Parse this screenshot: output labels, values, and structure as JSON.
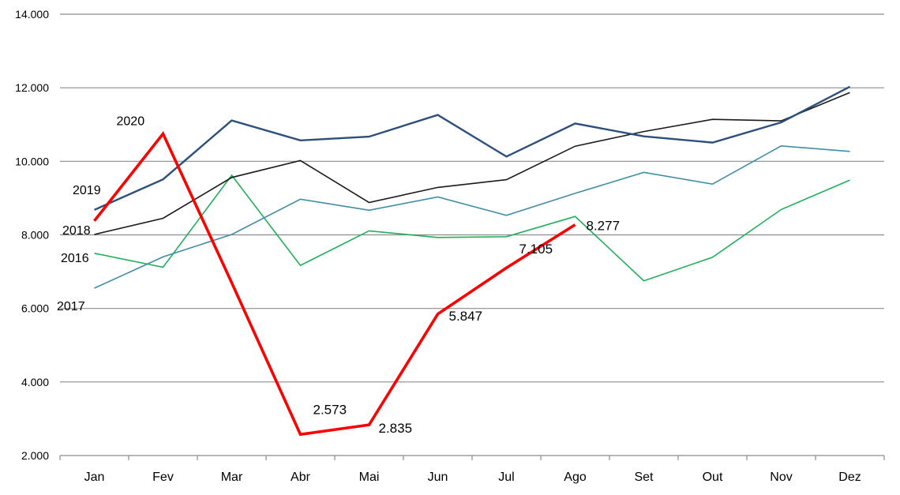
{
  "chart_data": {
    "type": "line",
    "title": "",
    "xlabel": "",
    "ylabel": "",
    "categories": [
      "Jan",
      "Fev",
      "Mar",
      "Abr",
      "Mai",
      "Jun",
      "Jul",
      "Ago",
      "Set",
      "Out",
      "Nov",
      "Dez"
    ],
    "ylim": [
      2000,
      14000
    ],
    "yticks": [
      2000,
      4000,
      6000,
      8000,
      10000,
      12000,
      14000
    ],
    "ytick_labels": [
      "2.000",
      "4.000",
      "6.000",
      "8.000",
      "10.000",
      "12.000",
      "14.000"
    ],
    "grid": true,
    "legend": "none",
    "series": [
      {
        "name": "2016",
        "color": "#1fb05a",
        "values": [
          7500,
          7120,
          9620,
          7170,
          8110,
          7930,
          7950,
          8500,
          6750,
          7390,
          8690,
          9490
        ]
      },
      {
        "name": "2017",
        "color": "#3f8ea6",
        "values": [
          6550,
          7400,
          8010,
          8970,
          8670,
          9030,
          8530,
          9130,
          9700,
          9380,
          10420,
          10270
        ]
      },
      {
        "name": "2018",
        "color": "#1a1a1a",
        "values": [
          8010,
          8450,
          9560,
          10020,
          8880,
          9290,
          9500,
          10410,
          10810,
          11140,
          11100,
          11870
        ]
      },
      {
        "name": "2019",
        "color": "#2c4f7c",
        "values": [
          8680,
          9510,
          11110,
          10570,
          10670,
          11260,
          10130,
          11030,
          10680,
          10510,
          11060,
          12030
        ]
      },
      {
        "name": "2020",
        "color": "#ff0000",
        "values": [
          8380,
          10750,
          6700,
          2573,
          2835,
          5847,
          7105,
          8277,
          null,
          null,
          null,
          null
        ]
      }
    ],
    "data_labels": [
      {
        "series": "2020",
        "category": "Abr",
        "text": "2.573"
      },
      {
        "series": "2020",
        "category": "Mai",
        "text": "2.835"
      },
      {
        "series": "2020",
        "category": "Jun",
        "text": "5.847"
      },
      {
        "series": "2020",
        "category": "Jul",
        "text": "7.105"
      },
      {
        "series": "2020",
        "category": "Ago",
        "text": "8.277"
      }
    ]
  }
}
